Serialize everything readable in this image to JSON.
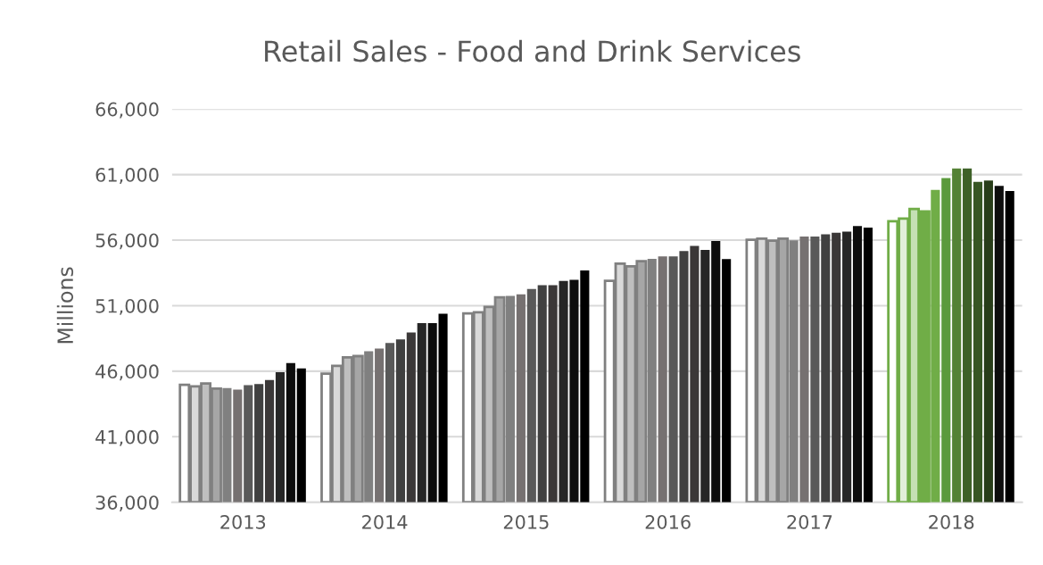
{
  "chart_data": {
    "type": "bar",
    "title": "Retail Sales - Food and Drink Services",
    "ylabel": "Millions",
    "categories": [
      "2013",
      "2014",
      "2015",
      "2016",
      "2017",
      "2018"
    ],
    "series": [
      {
        "colors": [
          "#ffffff",
          "#ffffff",
          "#ffffff",
          "#ffffff",
          "#ffffff",
          "#ffffff"
        ],
        "values": [
          44960,
          45820,
          50410,
          52890,
          56020,
          57440
        ]
      },
      {
        "colors": [
          "#d9d9d9",
          "#d9d9d9",
          "#d9d9d9",
          "#d9d9d9",
          "#d9d9d9",
          "#e2efda"
        ],
        "values": [
          44850,
          46410,
          50500,
          54200,
          56110,
          57650
        ]
      },
      {
        "colors": [
          "#bfbfbf",
          "#bfbfbf",
          "#bfbfbf",
          "#bfbfbf",
          "#bfbfbf",
          "#c5e0b4"
        ],
        "values": [
          45070,
          47050,
          50910,
          54000,
          55960,
          58380
        ]
      },
      {
        "colors": [
          "#a6a6a6",
          "#a6a6a6",
          "#a6a6a6",
          "#a6a6a6",
          "#a6a6a6",
          "#70ad47"
        ],
        "values": [
          44670,
          47150,
          51640,
          54400,
          56110,
          58190
        ]
      },
      {
        "colors": [
          "#808080",
          "#808080",
          "#808080",
          "#808080",
          "#808080",
          "#70ad47"
        ],
        "values": [
          44710,
          47520,
          51750,
          54580,
          55980,
          59840
        ]
      },
      {
        "colors": [
          "#767171",
          "#767171",
          "#767171",
          "#767171",
          "#767171",
          "#5b9a3c"
        ],
        "values": [
          44600,
          47720,
          51860,
          54760,
          56270,
          60730
        ]
      },
      {
        "colors": [
          "#595959",
          "#595959",
          "#595959",
          "#595959",
          "#595959",
          "#548235"
        ],
        "values": [
          44930,
          48160,
          52270,
          54760,
          56270,
          61460
        ]
      },
      {
        "colors": [
          "#404040",
          "#404040",
          "#404040",
          "#404040",
          "#404040",
          "#3e6128"
        ],
        "values": [
          45020,
          48430,
          52570,
          55160,
          56450,
          61460
        ]
      },
      {
        "colors": [
          "#3b3838",
          "#3b3838",
          "#3b3838",
          "#3b3838",
          "#3b3838",
          "#375623"
        ],
        "values": [
          45330,
          48960,
          52570,
          55560,
          56560,
          60450
        ]
      },
      {
        "colors": [
          "#262626",
          "#262626",
          "#262626",
          "#262626",
          "#262626",
          "#283d19"
        ],
        "values": [
          45930,
          49670,
          52890,
          55250,
          56650,
          60540
        ]
      },
      {
        "colors": [
          "#0d0d0d",
          "#0d0d0d",
          "#0d0d0d",
          "#0d0d0d",
          "#0d0d0d",
          "#0d0d0d"
        ],
        "values": [
          46620,
          49670,
          52980,
          55930,
          57070,
          60130
        ]
      },
      {
        "colors": [
          "#000000",
          "#000000",
          "#000000",
          "#000000",
          "#000000",
          "#000000"
        ],
        "values": [
          46220,
          50380,
          53680,
          54560,
          56960,
          59740
        ]
      }
    ],
    "ylim": [
      36000,
      66000
    ],
    "yticks": [
      {
        "value": 36000,
        "label": "36,000"
      },
      {
        "value": 41000,
        "label": "41,000"
      },
      {
        "value": 46000,
        "label": "46,000"
      },
      {
        "value": 51000,
        "label": "51,000"
      },
      {
        "value": 56000,
        "label": "56,000"
      },
      {
        "value": 61000,
        "label": "61,000"
      },
      {
        "value": 66000,
        "label": "66,000"
      }
    ],
    "grid": "y",
    "legend": false
  }
}
